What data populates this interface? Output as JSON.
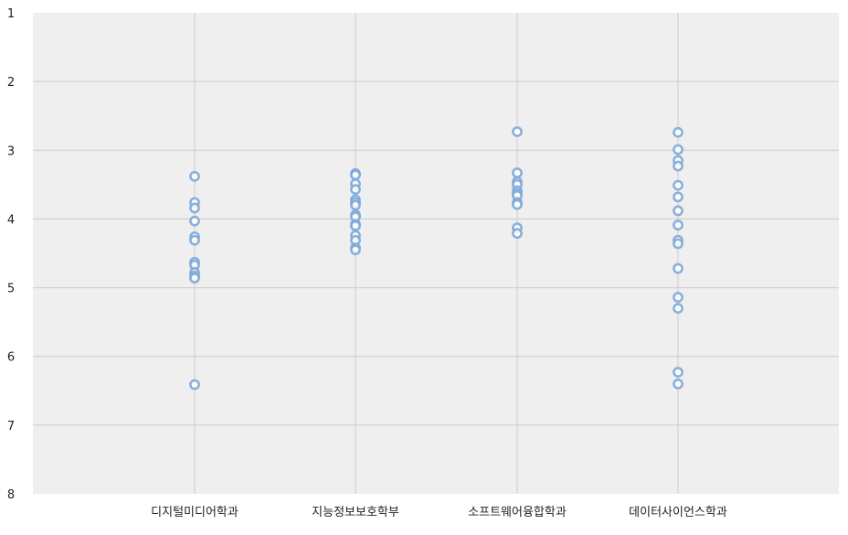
{
  "chart_data": {
    "type": "scatter",
    "title": "",
    "xlabel": "",
    "ylabel": "",
    "categories": [
      "디지털미디어학과",
      "지능정보보호학부",
      "소프트웨어융합학과",
      "데이터사이언스학과"
    ],
    "ylim": [
      1,
      8
    ],
    "y_reversed": true,
    "y_ticks": [
      1,
      2,
      3,
      4,
      5,
      6,
      7,
      8
    ],
    "grid": true,
    "legend": "none",
    "series": [
      {
        "category": "디지털미디어학과",
        "values": [
          3.38,
          3.76,
          3.84,
          4.03,
          4.26,
          4.31,
          4.63,
          4.67,
          4.78,
          4.83,
          4.86,
          6.41
        ]
      },
      {
        "category": "지능정보보호학부",
        "values": [
          3.34,
          3.36,
          3.49,
          3.57,
          3.72,
          3.76,
          3.8,
          3.94,
          3.97,
          4.08,
          4.1,
          4.24,
          4.31,
          4.42,
          4.45
        ]
      },
      {
        "category": "소프트웨어융합학과",
        "values": [
          2.73,
          3.33,
          3.46,
          3.5,
          3.59,
          3.63,
          3.66,
          3.76,
          3.79,
          4.13,
          4.21
        ]
      },
      {
        "category": "데이터사이언스학과",
        "values": [
          2.74,
          2.99,
          3.15,
          3.23,
          3.51,
          3.68,
          3.88,
          4.09,
          4.31,
          4.36,
          4.72,
          5.14,
          5.3,
          6.23,
          6.4
        ]
      }
    ],
    "colors": {
      "plot_bg": "#efefef",
      "grid": "#cccccc",
      "marker": "#7ea8d8",
      "marker_fill": "#ffffff"
    }
  }
}
